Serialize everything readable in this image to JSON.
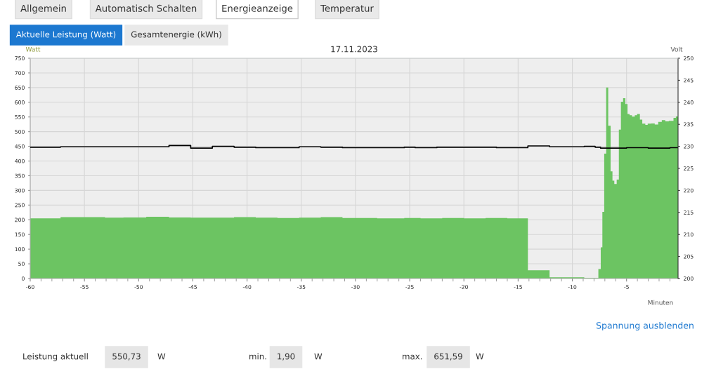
{
  "chart_data": {
    "type": "area",
    "title": "17.11.2023",
    "xlabel": "Minuten",
    "ylabel": "Watt",
    "y2label": "Volt",
    "xlim": [
      -60,
      -0.25
    ],
    "ylim": [
      0,
      750
    ],
    "y2lim": [
      200,
      250
    ],
    "xticks": [
      -60,
      {
        "value": -59,
        "label": null
      },
      {
        "value": -58,
        "label": null
      },
      {
        "value": -57,
        "label": null
      },
      {
        "value": -56,
        "label": null
      },
      -55,
      {
        "value": -54,
        "label": null
      },
      {
        "value": -53,
        "label": null
      },
      {
        "value": -52,
        "label": null
      },
      {
        "value": -51,
        "label": null
      },
      -50,
      {
        "value": -49,
        "label": null
      },
      {
        "value": -48,
        "label": null
      },
      {
        "value": -47,
        "label": null
      },
      {
        "value": -46,
        "label": null
      },
      -45,
      {
        "value": -44,
        "label": null
      },
      {
        "value": -43,
        "label": null
      },
      {
        "value": -42,
        "label": null
      },
      {
        "value": -41,
        "label": null
      },
      -40,
      {
        "value": -39,
        "label": null
      },
      {
        "value": -38,
        "label": null
      },
      {
        "value": -37,
        "label": null
      },
      {
        "value": -36,
        "label": null
      },
      -35,
      {
        "value": -34,
        "label": null
      },
      {
        "value": -33,
        "label": null
      },
      {
        "value": -32,
        "label": null
      },
      {
        "value": -31,
        "label": null
      },
      -30,
      {
        "value": -29,
        "label": null
      },
      {
        "value": -28,
        "label": null
      },
      {
        "value": -27,
        "label": null
      },
      {
        "value": -26,
        "label": null
      },
      -25,
      {
        "value": -24,
        "label": null
      },
      {
        "value": -23,
        "label": null
      },
      {
        "value": -22,
        "label": null
      },
      {
        "value": -21,
        "label": null
      },
      -20,
      {
        "value": -19,
        "label": null
      },
      {
        "value": -18,
        "label": null
      },
      {
        "value": -17,
        "label": null
      },
      {
        "value": -16,
        "label": null
      },
      -15,
      {
        "value": -14,
        "label": null
      },
      {
        "value": -13,
        "label": null
      },
      {
        "value": -12,
        "label": null
      },
      {
        "value": -11,
        "label": null
      },
      -10,
      {
        "value": -9,
        "label": null
      },
      {
        "value": -8,
        "label": null
      },
      {
        "value": -7,
        "label": null
      },
      {
        "value": -6,
        "label": null
      },
      -5,
      {
        "value": -4,
        "label": null
      },
      {
        "value": -3,
        "label": null
      },
      {
        "value": -2,
        "label": null
      },
      {
        "value": -1,
        "label": null
      }
    ],
    "yticks": [
      0,
      50,
      100,
      150,
      200,
      250,
      300,
      350,
      400,
      450,
      500,
      550,
      600,
      650,
      700,
      750
    ],
    "y2ticks": [
      200,
      205,
      210,
      215,
      220,
      225,
      230,
      235,
      240,
      245,
      250
    ],
    "grid": true,
    "series": [
      {
        "color": "#6cc462",
        "x": [
          -60,
          -57.2,
          -53.1,
          -51.4,
          -49.3,
          -47.2,
          -45.2,
          -41.2,
          -39.2,
          -37.2,
          -35.2,
          -33.2,
          -31.2,
          -28,
          -25.5,
          -24,
          -22,
          -20,
          -18,
          -16,
          -14.1,
          -12.1,
          -8.9,
          -7.6,
          -7.38,
          -7.23,
          -7.06,
          -6.88,
          -6.69,
          -6.47,
          -6.3,
          -6.13,
          -5.91,
          -5.71,
          -5.52,
          -5.32,
          -5.11,
          -4.91,
          -4.72,
          -4.5,
          -4.24,
          -4.03,
          -3.77,
          -3.55,
          -3.27,
          -3.05,
          -2.73,
          -2.4,
          -2.08,
          -1.75,
          -1.43,
          -1.1,
          -0.67,
          -0.45
        ],
        "values": [
          205,
          209,
          207,
          208,
          210,
          208,
          207,
          209,
          207,
          206,
          207,
          209,
          206,
          205,
          206,
          205,
          206,
          205,
          206,
          205,
          28,
          4,
          2,
          32,
          106,
          227,
          425,
          650,
          520,
          365,
          333,
          322,
          337,
          507,
          602,
          614,
          594,
          560,
          556,
          551,
          556,
          560,
          541,
          527,
          523,
          527,
          528,
          524,
          533,
          539,
          535,
          537,
          547,
          552
        ]
      },
      {
        "type": "step",
        "axis": "y2",
        "color": "#000000",
        "x": [
          -60,
          -57.2,
          -47.2,
          -45.2,
          -43.2,
          -41.2,
          -39.2,
          -35.2,
          -33.2,
          -31.2,
          -25.5,
          -24.5,
          -22.5,
          -20.5,
          -17,
          -14.1,
          -12.1,
          -8.9,
          -7.9,
          -7.4,
          -5,
          -3,
          -1,
          -0.25
        ],
        "values": [
          229.8,
          229.9,
          230.2,
          229.6,
          230.0,
          229.8,
          229.7,
          229.9,
          229.8,
          229.7,
          229.8,
          229.7,
          229.8,
          229.8,
          229.7,
          230.1,
          229.9,
          230.0,
          229.8,
          229.6,
          229.7,
          229.6,
          229.7,
          229.7
        ]
      }
    ],
    "annotations": [
      "Allgemein",
      "Automatisch Schalten",
      "Energieanzeige",
      "Temperatur",
      "Aktuelle Leistung (Watt)",
      "Gesamtenergie (kWh)",
      "Spannung ausblenden",
      "Leistung aktuell",
      "550,73",
      "W",
      "min.",
      "1,90",
      "W",
      "max.",
      "651,59",
      "W"
    ]
  }
}
